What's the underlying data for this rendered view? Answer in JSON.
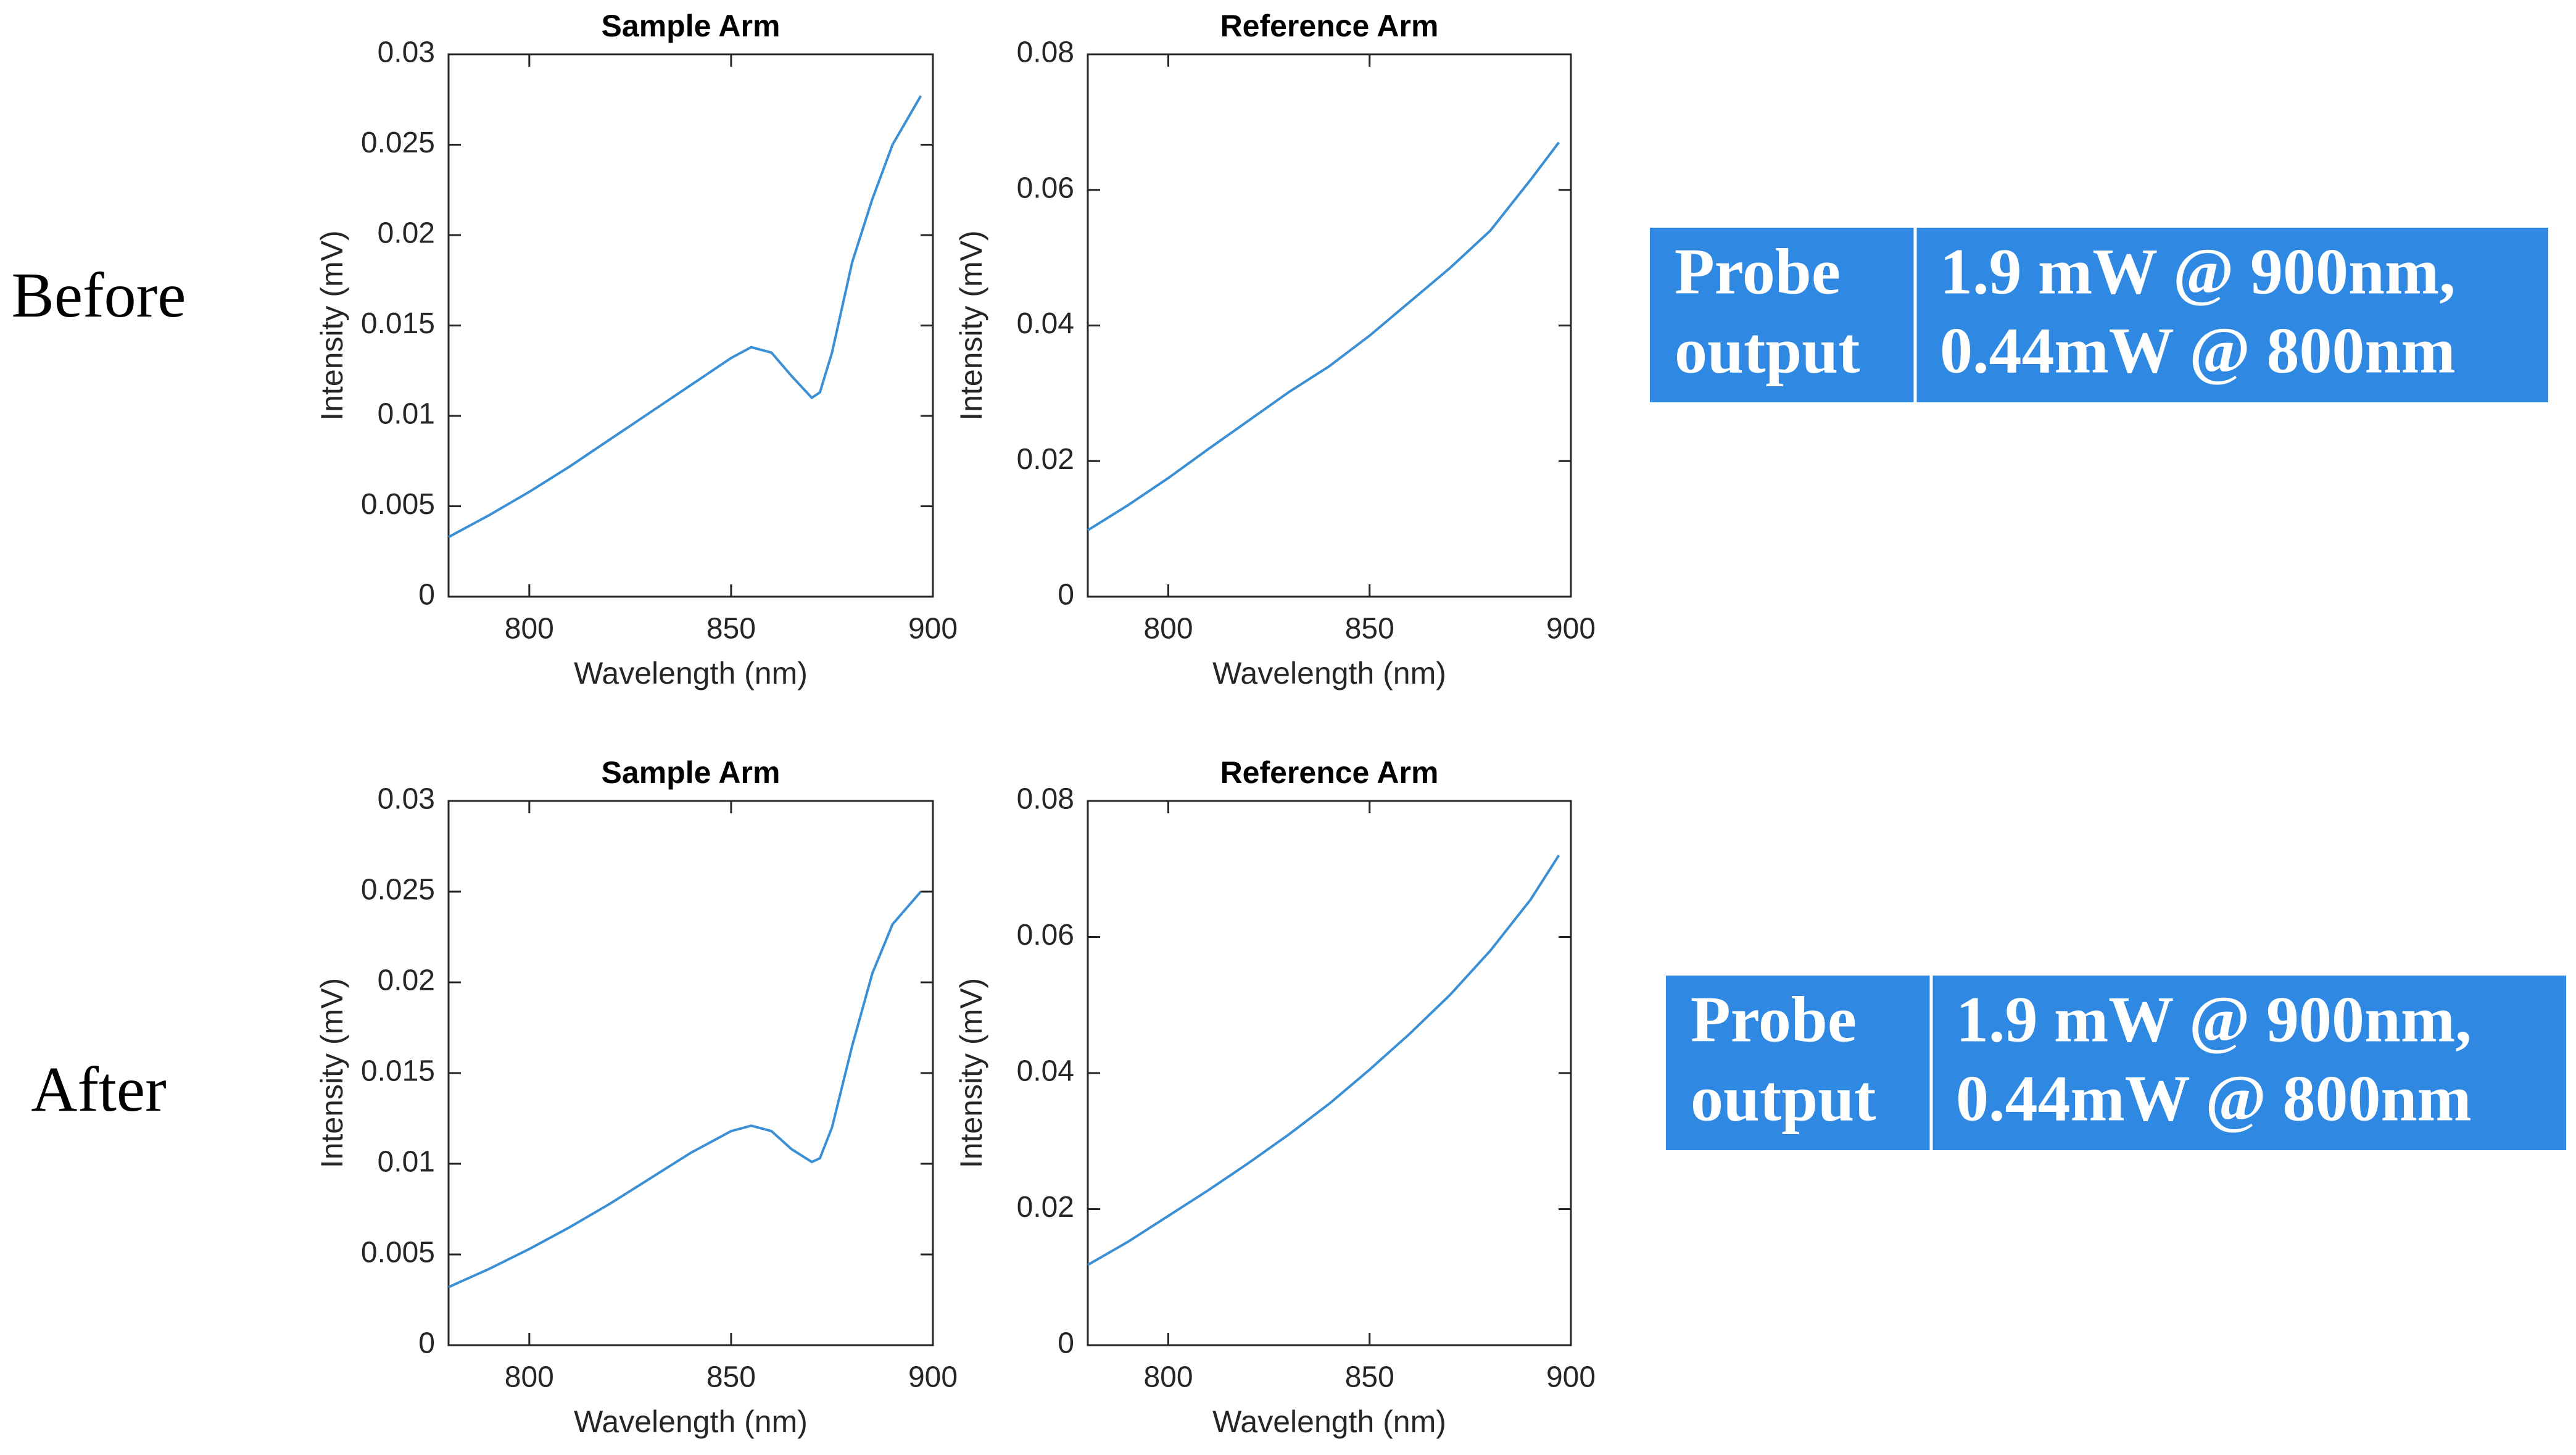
{
  "chart_data": [
    {
      "type": "line",
      "title": "Sample Arm",
      "xlabel": "Wavelength (nm)",
      "ylabel": "Intensity (mV)",
      "x": [
        780,
        790,
        800,
        810,
        820,
        830,
        840,
        850,
        855,
        860,
        865,
        870,
        872,
        875,
        880,
        885,
        890,
        897
      ],
      "series": [
        {
          "color": "#3b8fd4",
          "values": [
            0.0033,
            0.0045,
            0.0058,
            0.0072,
            0.0087,
            0.0102,
            0.0117,
            0.0132,
            0.0138,
            0.0135,
            0.0122,
            0.011,
            0.0113,
            0.0135,
            0.0185,
            0.022,
            0.025,
            0.0277
          ]
        }
      ],
      "xlim": [
        780,
        900
      ],
      "xticks": [
        800,
        850,
        900
      ],
      "ylim": [
        0,
        0.03
      ],
      "yticks": [
        0,
        0.005,
        0.01,
        0.015,
        0.02,
        0.025,
        0.03
      ]
    },
    {
      "type": "line",
      "title": "Reference Arm",
      "xlabel": "Wavelength (nm)",
      "ylabel": "Intensity (mV)",
      "x": [
        780,
        790,
        800,
        810,
        820,
        830,
        840,
        850,
        860,
        870,
        880,
        890,
        897
      ],
      "series": [
        {
          "color": "#3b8fd4",
          "values": [
            0.0098,
            0.0135,
            0.0175,
            0.0218,
            0.026,
            0.0302,
            0.034,
            0.0385,
            0.0435,
            0.0485,
            0.054,
            0.0615,
            0.067
          ]
        }
      ],
      "xlim": [
        780,
        900
      ],
      "xticks": [
        800,
        850,
        900
      ],
      "ylim": [
        0,
        0.08
      ],
      "yticks": [
        0,
        0.02,
        0.04,
        0.06,
        0.08
      ]
    },
    {
      "type": "line",
      "title": "Sample Arm",
      "xlabel": "Wavelength (nm)",
      "ylabel": "Intensity (mV)",
      "x": [
        780,
        790,
        800,
        810,
        820,
        830,
        840,
        850,
        855,
        860,
        865,
        870,
        872,
        875,
        880,
        885,
        890,
        897
      ],
      "series": [
        {
          "color": "#3b8fd4",
          "values": [
            0.0032,
            0.0042,
            0.0053,
            0.0065,
            0.0078,
            0.0092,
            0.0106,
            0.0118,
            0.0121,
            0.0118,
            0.0108,
            0.0101,
            0.0103,
            0.012,
            0.0165,
            0.0205,
            0.0232,
            0.025
          ]
        }
      ],
      "xlim": [
        780,
        900
      ],
      "xticks": [
        800,
        850,
        900
      ],
      "ylim": [
        0,
        0.03
      ],
      "yticks": [
        0,
        0.005,
        0.01,
        0.015,
        0.02,
        0.025,
        0.03
      ]
    },
    {
      "type": "line",
      "title": "Reference Arm",
      "xlabel": "Wavelength (nm)",
      "ylabel": "Intensity (mV)",
      "x": [
        780,
        790,
        800,
        810,
        820,
        830,
        840,
        850,
        860,
        870,
        880,
        890,
        897
      ],
      "series": [
        {
          "color": "#3b8fd4",
          "values": [
            0.0118,
            0.0152,
            0.019,
            0.0228,
            0.0268,
            0.031,
            0.0355,
            0.0405,
            0.0458,
            0.0515,
            0.058,
            0.0655,
            0.072
          ]
        }
      ],
      "xlim": [
        780,
        900
      ],
      "xticks": [
        800,
        850,
        900
      ],
      "ylim": [
        0,
        0.08
      ],
      "yticks": [
        0,
        0.02,
        0.04,
        0.06,
        0.08
      ]
    }
  ],
  "rows": [
    {
      "label": "Before",
      "box": {
        "color": "#2f89e3",
        "left": [
          "Probe",
          "output"
        ],
        "right": [
          "1.9 mW @ 900nm,",
          "0.44mW @ 800nm"
        ]
      }
    },
    {
      "label": "After",
      "box": {
        "color": "#2f89e3",
        "left": [
          "Probe",
          "output"
        ],
        "right": [
          "1.9 mW @ 900nm,",
          "0.44mW @ 800nm"
        ]
      }
    }
  ]
}
